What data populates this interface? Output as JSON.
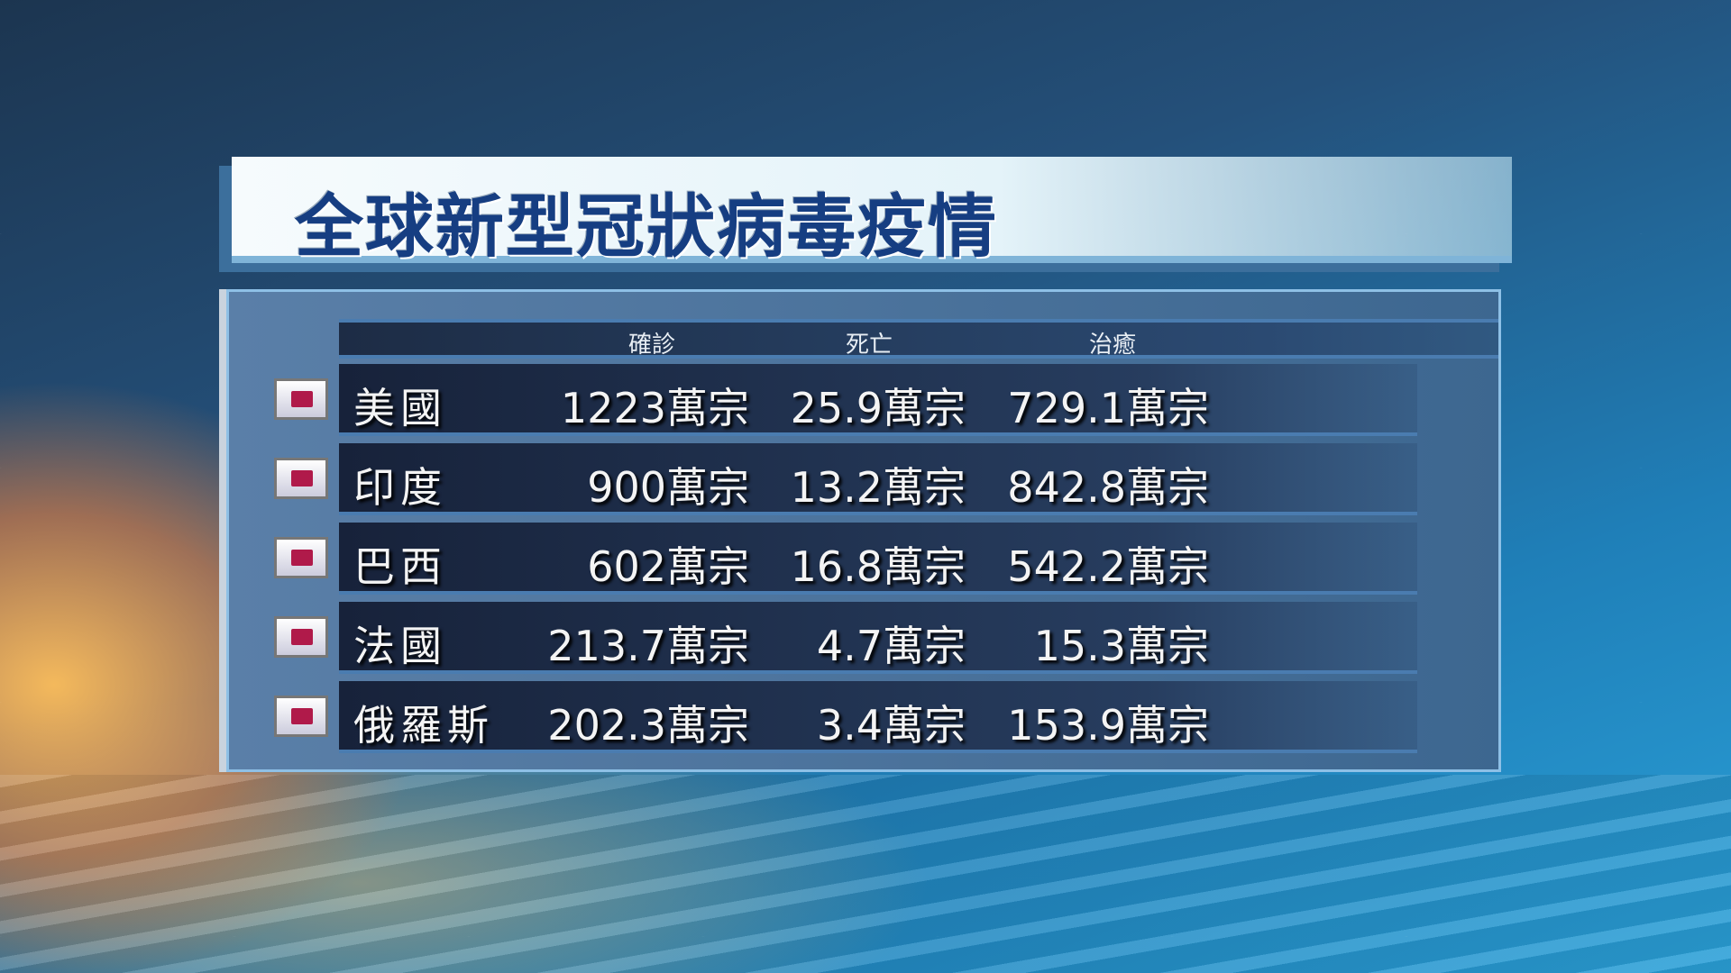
{
  "title": "全球新型冠狀病毒疫情",
  "columns": {
    "confirmed": "確診",
    "deaths": "死亡",
    "recovered": "治癒"
  },
  "rows": [
    {
      "country": "美國",
      "confirmed": "1223萬宗",
      "deaths": "25.9萬宗",
      "recovered": "729.1萬宗"
    },
    {
      "country": "印度",
      "confirmed": "900萬宗",
      "deaths": "13.2萬宗",
      "recovered": "842.8萬宗"
    },
    {
      "country": "巴西",
      "confirmed": "602萬宗",
      "deaths": "16.8萬宗",
      "recovered": "542.2萬宗"
    },
    {
      "country": "法國",
      "confirmed": "213.7萬宗",
      "deaths": "4.7萬宗",
      "recovered": "15.3萬宗"
    },
    {
      "country": "俄羅斯",
      "confirmed": "202.3萬宗",
      "deaths": "3.4萬宗",
      "recovered": "153.9萬宗"
    }
  ],
  "colors": {
    "title": "#163e82",
    "flag_mark": "#b01a4a"
  }
}
